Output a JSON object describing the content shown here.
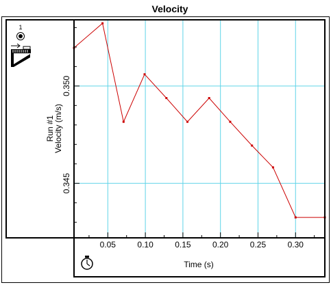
{
  "chart_data": {
    "type": "line",
    "title": "Velocity",
    "xlabel": "Time (s)",
    "ylabel_run": "Run #1",
    "ylabel": "Velocity (m/s)",
    "xlim": [
      0.005,
      0.339
    ],
    "ylim": [
      0.3422,
      0.3534
    ],
    "x_ticks": [
      0.05,
      0.1,
      0.15,
      0.2,
      0.25,
      0.3
    ],
    "x_tick_labels": [
      "0.05",
      "0.10",
      "0.15",
      "0.20",
      "0.25",
      "0.30"
    ],
    "x_minor_ticks": [
      0.025,
      0.075,
      0.125,
      0.175,
      0.225,
      0.275,
      0.325
    ],
    "y_ticks": [
      0.345,
      0.35
    ],
    "y_tick_labels": [
      "0.345",
      "0.350"
    ],
    "y_minor_ticks": [
      0.343,
      0.344,
      0.346,
      0.347,
      0.348,
      0.349,
      0.351,
      0.352,
      0.353
    ],
    "grid": true,
    "colors": {
      "grid": "#5fd4e8",
      "series": "#cc0000",
      "axes": "#000000"
    },
    "series": [
      {
        "x": [
          0.005,
          0.043,
          0.071,
          0.099,
          0.128,
          0.156,
          0.185,
          0.213,
          0.242,
          0.27,
          0.3,
          0.339
        ],
        "values": [
          0.35196,
          0.35322,
          0.34816,
          0.3506,
          0.34938,
          0.34816,
          0.34938,
          0.34816,
          0.34694,
          0.34582,
          0.34325,
          0.34325
        ]
      }
    ]
  },
  "panel": {
    "run_number": "1",
    "icons": [
      "run-marker-icon",
      "motion-sensor-icon",
      "stopwatch-icon"
    ]
  }
}
